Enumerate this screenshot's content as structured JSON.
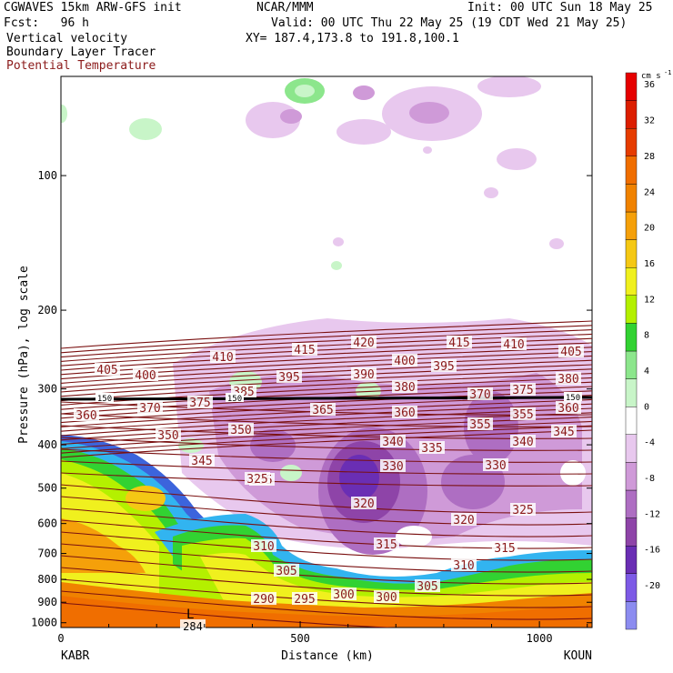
{
  "header": {
    "model": "CGWAVES 15km ARW-GFS init",
    "org": "NCAR/MMM",
    "init": "Init: 00 UTC Sun 18 May 25",
    "fcst": "Fcst:   96 h",
    "valid": "Valid: 00 UTC Thu 22 May 25 (19 CDT Wed 21 May 25)",
    "field1": "Vertical velocity",
    "field2": "Boundary Layer Tracer",
    "field3": "Potential Temperature",
    "xy": "XY= 187.4,173.8 to 191.8,100.1"
  },
  "chart_data": {
    "type": "cross-section",
    "xlabel": "Distance (km)",
    "ylabel": "Pressure (hPa), log scale",
    "x_ticks": [
      0,
      500,
      1000
    ],
    "xlim": [
      0,
      1110
    ],
    "y_ticks": [
      100,
      200,
      300,
      400,
      500,
      600,
      700,
      800,
      900,
      1000
    ],
    "ylim": [
      1000,
      10
    ],
    "left_station": "KABR",
    "right_station": "KOUN",
    "colorbar": {
      "unit": "cm s",
      "unit_exp": "-1",
      "levels": [
        -20,
        -16,
        -12,
        -8,
        -4,
        0,
        4,
        8,
        12,
        16,
        20,
        24,
        28,
        32,
        36
      ],
      "colors": [
        "#8c8cf0",
        "#7d5ae6",
        "#6a2eb4",
        "#8e44a8",
        "#ae6ec2",
        "#cf9ad8",
        "#e8c8ee",
        "#ffffff",
        "#c8f5c8",
        "#8ce68c",
        "#32d232",
        "#b4f000",
        "#f0f01e",
        "#f5c814",
        "#f5a00a",
        "#f08200",
        "#f06e00",
        "#e63c00",
        "#dc1e00",
        "#e60000"
      ]
    },
    "theta_labels": [
      "420",
      "415",
      "415",
      "410",
      "410",
      "405",
      "405",
      "400",
      "400",
      "395",
      "395",
      "390",
      "385",
      "380",
      "380",
      "375",
      "375",
      "370",
      "370",
      "365",
      "360",
      "360",
      "360",
      "355",
      "355",
      "350",
      "350",
      "345",
      "345",
      "340",
      "340",
      "335",
      "335",
      "330",
      "330",
      "325",
      "325",
      "320",
      "320",
      "315",
      "315",
      "310",
      "310",
      "305",
      "305",
      "300",
      "300",
      "295",
      "290",
      "284"
    ],
    "tropopause_labels": [
      "150",
      "150",
      "150"
    ],
    "annotation": "L"
  }
}
